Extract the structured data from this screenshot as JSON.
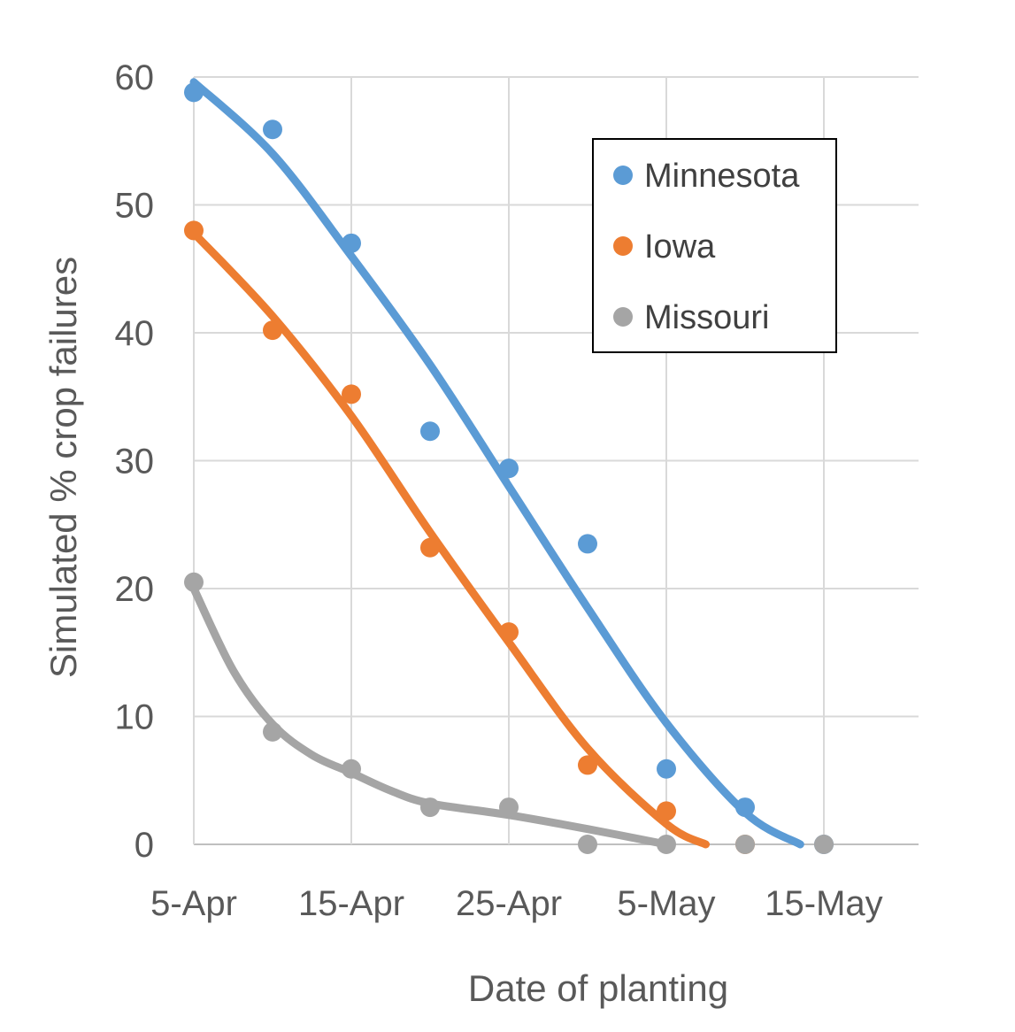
{
  "chart_data": {
    "type": "scatter",
    "xlabel": "Date of planting",
    "ylabel": "Simulated % crop failures",
    "x_ticks": [
      "5-Apr",
      "15-Apr",
      "25-Apr",
      "5-May",
      "15-May"
    ],
    "x_tick_values": [
      0,
      10,
      20,
      30,
      40
    ],
    "xlim": [
      0,
      46
    ],
    "y_ticks": [
      0,
      10,
      20,
      30,
      40,
      50,
      60
    ],
    "ylim": [
      0,
      60
    ],
    "grid": true,
    "legend_position": "top-right",
    "legend": [
      "Minnesota",
      "Iowa",
      "Missouri"
    ],
    "series": [
      {
        "name": "Minnesota",
        "color": "#5b9bd5",
        "x": [
          0,
          5,
          10,
          15,
          20,
          25,
          30,
          35,
          40
        ],
        "y": [
          58.8,
          55.9,
          47.0,
          32.3,
          29.4,
          23.5,
          5.9,
          2.9,
          0
        ],
        "trend": {
          "x": [
            0,
            5,
            10,
            15,
            20,
            25,
            30,
            35,
            38.5
          ],
          "y": [
            59.6,
            54.0,
            46.0,
            37.5,
            28.0,
            18.5,
            9.5,
            2.5,
            0
          ]
        }
      },
      {
        "name": "Iowa",
        "color": "#ed7d31",
        "x": [
          0,
          5,
          10,
          15,
          20,
          25,
          30,
          35
        ],
        "y": [
          48.0,
          40.2,
          35.2,
          23.2,
          16.6,
          6.2,
          2.6,
          0
        ],
        "trend": {
          "x": [
            0,
            5,
            10,
            15,
            20,
            25,
            30,
            32.5
          ],
          "y": [
            47.8,
            41.3,
            33.5,
            24.4,
            15.8,
            7.5,
            1.6,
            0
          ]
        }
      },
      {
        "name": "Missouri",
        "color": "#a5a5a5",
        "x": [
          0,
          5,
          10,
          15,
          20,
          25,
          30,
          35,
          40
        ],
        "y": [
          20.5,
          8.8,
          5.9,
          2.9,
          2.9,
          0,
          0,
          0,
          0
        ],
        "trend": {
          "x": [
            0,
            2.5,
            5,
            7.5,
            10,
            12.5,
            15,
            20,
            25,
            30
          ],
          "y": [
            20.0,
            13.6,
            9.4,
            7.0,
            5.6,
            4.2,
            3.2,
            2.3,
            1.2,
            0
          ]
        }
      }
    ]
  }
}
